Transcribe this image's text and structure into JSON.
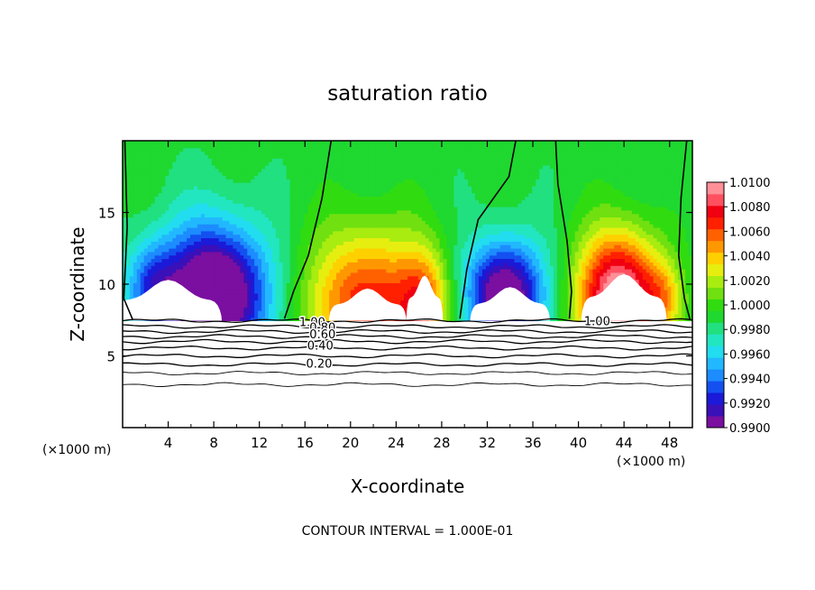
{
  "chart_data": {
    "type": "heatmap",
    "title": "saturation ratio",
    "xlabel": "X-coordinate",
    "ylabel": "Z-coordinate",
    "x_unit_left": "(×1000 m)",
    "x_unit_right": "(×1000 m)",
    "footer": "CONTOUR INTERVAL = 1.000E-01",
    "xlim": [
      0,
      50
    ],
    "ylim": [
      0,
      20
    ],
    "x_ticks": [
      4,
      8,
      12,
      16,
      20,
      24,
      28,
      32,
      36,
      40,
      44,
      48
    ],
    "y_ticks": [
      5,
      10,
      15
    ],
    "colorbar": {
      "ticks": [
        "1.0100",
        "1.0080",
        "1.0060",
        "1.0040",
        "1.0020",
        "1.0000",
        "0.9980",
        "0.9960",
        "0.9940",
        "0.9920",
        "0.9900"
      ],
      "levels": [
        0.99,
        0.991,
        0.992,
        0.993,
        0.994,
        0.995,
        0.996,
        0.997,
        0.998,
        0.999,
        1.0,
        1.001,
        1.002,
        1.003,
        1.004,
        1.005,
        1.006,
        1.007,
        1.008,
        1.009,
        1.01
      ],
      "colors": [
        "#7a0fa0",
        "#3a10b8",
        "#1a1ad8",
        "#1450f0",
        "#1c8cff",
        "#22b8ff",
        "#22dcf0",
        "#22e6c0",
        "#20e080",
        "#1fd830",
        "#30dc10",
        "#70e010",
        "#a8ec10",
        "#e6ee10",
        "#ffd000",
        "#ff9800",
        "#ff6000",
        "#ff2000",
        "#f00010",
        "#ff5060",
        "#ff9098"
      ]
    },
    "contour_labels": [
      "1.00",
      "0.80",
      "0.60",
      "0.40",
      "0.20"
    ],
    "contour_values": [
      1.0,
      0.9,
      0.8,
      0.7,
      0.6,
      0.5,
      0.4,
      0.3,
      0.2,
      0.1
    ],
    "boundary_height_km": 7.5
  }
}
